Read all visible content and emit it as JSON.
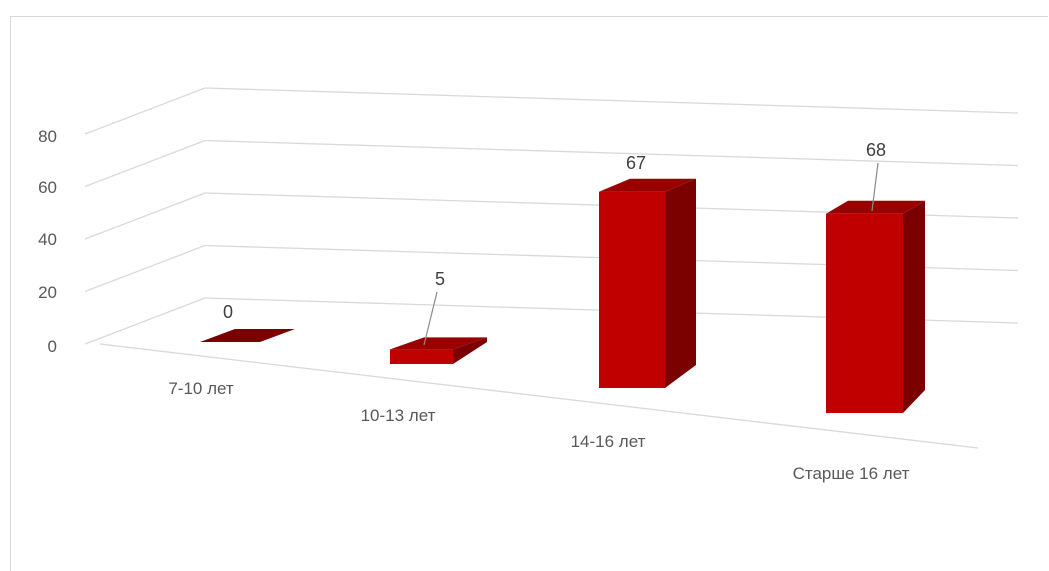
{
  "colors": {
    "bar_front": "#c00000",
    "bar_side": "#7b0000",
    "bar_top": "#9a0000",
    "gridline": "#d9d9d9",
    "text": "#595959"
  },
  "chart_data": {
    "type": "bar",
    "style": "3d-column",
    "categories": [
      "7-10 лет",
      "10-13 лет",
      "14-16 лет",
      "Старше 16 лет"
    ],
    "values": [
      0,
      5,
      67,
      68
    ],
    "data_labels": [
      "0",
      "5",
      "67",
      "68"
    ],
    "y_ticks": [
      0,
      20,
      40,
      60,
      80
    ],
    "y_tick_labels": [
      "0",
      "20",
      "40",
      "60",
      "80"
    ],
    "ylim": [
      0,
      80
    ],
    "grid": true,
    "legend": "none",
    "title": "",
    "xlabel": "",
    "ylabel": ""
  }
}
